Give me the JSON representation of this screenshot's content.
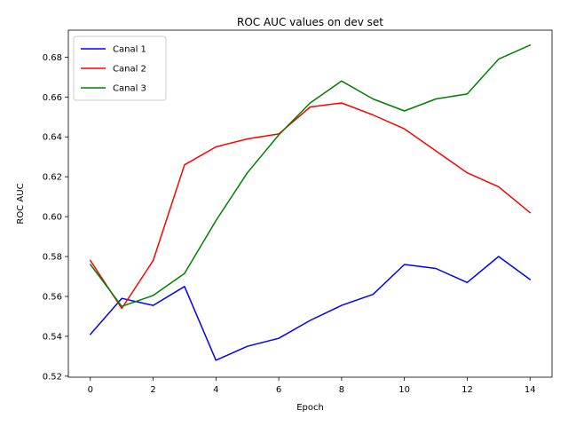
{
  "chart_data": {
    "type": "line",
    "title": "ROC AUC values on dev set",
    "xlabel": "Epoch",
    "ylabel": "ROC AUC",
    "xlim": [
      -0.7,
      14.7
    ],
    "ylim": [
      0.5195,
      0.6935
    ],
    "xticks": [
      0,
      2,
      4,
      6,
      8,
      10,
      12,
      14
    ],
    "yticks": [
      0.52,
      0.54,
      0.56,
      0.58,
      0.6,
      0.62,
      0.64,
      0.66,
      0.68
    ],
    "xtick_labels": [
      "0",
      "2",
      "4",
      "6",
      "8",
      "10",
      "12",
      "14"
    ],
    "ytick_labels": [
      "0.52",
      "0.54",
      "0.56",
      "0.58",
      "0.60",
      "0.62",
      "0.64",
      "0.66",
      "0.68"
    ],
    "grid": false,
    "legend_position": "top-left",
    "x": [
      0,
      1,
      2,
      3,
      4,
      5,
      6,
      7,
      8,
      9,
      10,
      11,
      12,
      13,
      14
    ],
    "series": [
      {
        "name": "Canal 1",
        "color": "#0000ff",
        "values": [
          0.541,
          0.559,
          0.5555,
          0.565,
          0.528,
          0.535,
          0.539,
          0.548,
          0.5555,
          0.561,
          0.576,
          0.574,
          0.567,
          0.58,
          0.5685
        ]
      },
      {
        "name": "Canal 2",
        "color": "#ff0000",
        "values": [
          0.578,
          0.554,
          0.578,
          0.626,
          0.635,
          0.639,
          0.6415,
          0.655,
          0.657,
          0.651,
          0.644,
          0.633,
          0.622,
          0.615,
          0.602
        ]
      },
      {
        "name": "Canal 3",
        "color": "#008000",
        "values": [
          0.576,
          0.555,
          0.5605,
          0.5715,
          0.598,
          0.622,
          0.641,
          0.657,
          0.668,
          0.659,
          0.653,
          0.659,
          0.6615,
          0.679,
          0.686
        ]
      }
    ]
  }
}
